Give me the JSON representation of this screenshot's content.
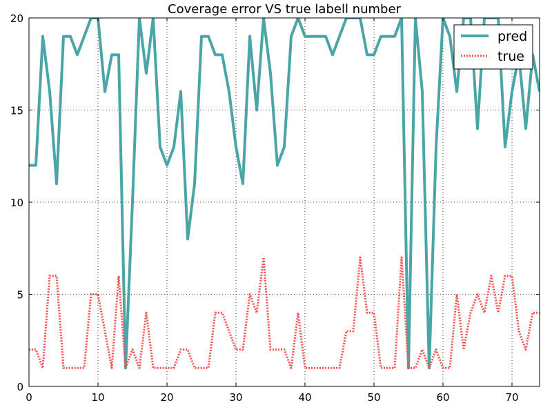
{
  "chart_data": {
    "type": "line",
    "title": "Coverage error VS true labell number",
    "xlabel": "",
    "ylabel": "",
    "xlim": [
      0,
      74
    ],
    "ylim": [
      0,
      20
    ],
    "x_ticks": [
      0,
      10,
      20,
      30,
      40,
      50,
      60,
      70
    ],
    "y_ticks": [
      0,
      5,
      10,
      15,
      20
    ],
    "grid": true,
    "legend_position": "top-right",
    "series": [
      {
        "name": "pred",
        "color": "#4aa6a6",
        "style": "solid",
        "values": [
          12,
          12,
          19,
          16,
          11,
          19,
          19,
          18,
          19,
          20,
          20,
          16,
          18,
          18,
          1,
          10,
          20,
          17,
          20,
          13,
          12,
          13,
          16,
          8,
          11,
          19,
          19,
          18,
          18,
          16,
          13,
          11,
          19,
          15,
          20,
          17,
          12,
          13,
          19,
          20,
          19,
          19,
          19,
          19,
          18,
          19,
          20,
          20,
          20,
          18,
          18,
          19,
          19,
          19,
          20,
          1,
          20,
          16,
          1,
          13,
          20,
          19,
          16,
          20,
          20,
          14,
          20,
          20,
          20,
          13,
          16,
          18,
          14,
          18,
          16
        ]
      },
      {
        "name": "true",
        "color": "#ff4d4d",
        "style": "dotted",
        "values": [
          2,
          2,
          1,
          6,
          6,
          1,
          1,
          1,
          1,
          5,
          5,
          3,
          1,
          6,
          1,
          2,
          1,
          4,
          1,
          1,
          1,
          1,
          2,
          2,
          1,
          1,
          1,
          4,
          4,
          3,
          2,
          2,
          5,
          4,
          7,
          2,
          2,
          2,
          1,
          4,
          1,
          1,
          1,
          1,
          1,
          1,
          3,
          3,
          7,
          4,
          4,
          1,
          1,
          1,
          7,
          1,
          1,
          2,
          1,
          2,
          1,
          1,
          5,
          2,
          4,
          5,
          4,
          6,
          4,
          6,
          6,
          3,
          2,
          4,
          4
        ]
      }
    ]
  }
}
